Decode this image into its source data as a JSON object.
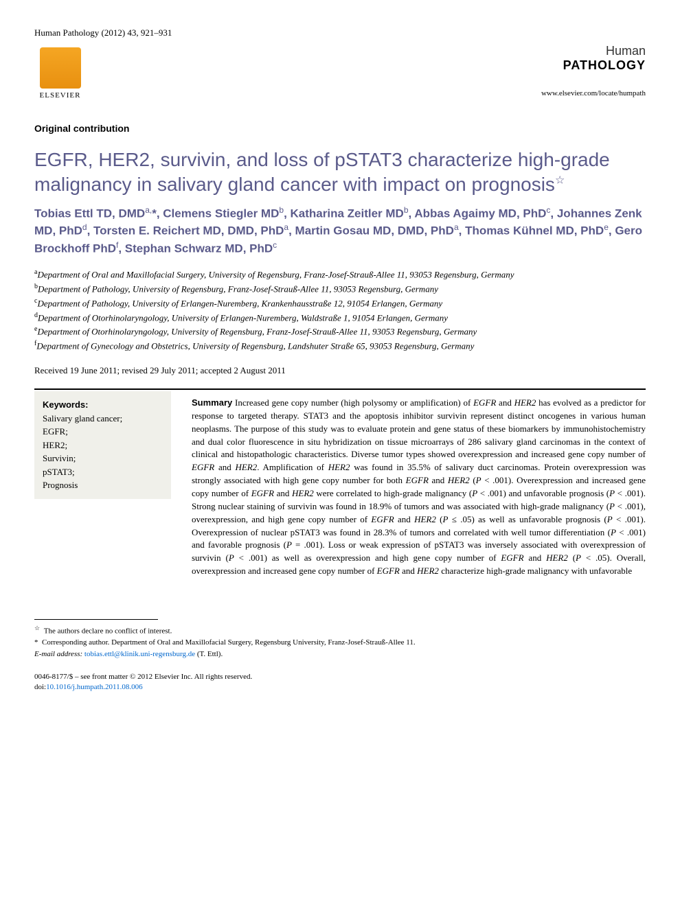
{
  "header": {
    "citation": "Human Pathology (2012) 43, 921–931",
    "publisher": "ELSEVIER",
    "journal_top": "Human",
    "journal_bottom": "PATHOLOGY",
    "url": "www.elsevier.com/locate/humpath"
  },
  "section": "Original contribution",
  "title": "EGFR, HER2, survivin, and loss of pSTAT3 characterize high-grade malignancy in salivary gland cancer with impact on prognosis",
  "title_star": "☆",
  "authors_html": "Tobias Ettl TD, DMD<sup>a,</sup>*, Clemens Stiegler MD<sup>b</sup>, Katharina Zeitler MD<sup>b</sup>, Abbas Agaimy MD, PhD<sup>c</sup>, Johannes Zenk MD, PhD<sup>d</sup>, Torsten E. Reichert MD, DMD, PhD<sup>a</sup>, Martin Gosau MD, DMD, PhD<sup>a</sup>, Thomas Kühnel MD, PhD<sup>e</sup>, Gero Brockhoff PhD<sup>f</sup>, Stephan Schwarz MD, PhD<sup>c</sup>",
  "affiliations": [
    {
      "sup": "a",
      "text": "Department of Oral and Maxillofacial Surgery, University of Regensburg, Franz-Josef-Strauß-Allee 11, 93053 Regensburg, Germany"
    },
    {
      "sup": "b",
      "text": "Department of Pathology, University of Regensburg, Franz-Josef-Strauß-Allee 11, 93053 Regensburg, Germany"
    },
    {
      "sup": "c",
      "text": "Department of Pathology, University of Erlangen-Nuremberg, Krankenhausstraße 12, 91054 Erlangen, Germany"
    },
    {
      "sup": "d",
      "text": "Department of Otorhinolaryngology, University of Erlangen-Nuremberg, Waldstraße 1, 91054 Erlangen, Germany"
    },
    {
      "sup": "e",
      "text": "Department of Otorhinolaryngology, University of Regensburg, Franz-Josef-Strauß-Allee 11, 93053 Regensburg, Germany"
    },
    {
      "sup": "f",
      "text": "Department of Gynecology and Obstetrics, University of Regensburg, Landshuter Straße 65, 93053 Regensburg, Germany"
    }
  ],
  "dates": "Received 19 June 2011; revised 29 July 2011; accepted 2 August 2011",
  "keywords_label": "Keywords:",
  "keywords": "Salivary gland cancer;\nEGFR;\nHER2;\nSurvivin;\npSTAT3;\nPrognosis",
  "summary_label": "Summary",
  "summary": " Increased gene copy number (high polysomy or amplification) of EGFR and HER2 has evolved as a predictor for response to targeted therapy. STAT3 and the apoptosis inhibitor survivin represent distinct oncogenes in various human neoplasms. The purpose of this study was to evaluate protein and gene status of these biomarkers by immunohistochemistry and dual color fluorescence in situ hybridization on tissue microarrays of 286 salivary gland carcinomas in the context of clinical and histopathologic characteristics. Diverse tumor types showed overexpression and increased gene copy number of EGFR and HER2. Amplification of HER2 was found in 35.5% of salivary duct carcinomas. Protein overexpression was strongly associated with high gene copy number for both EGFR and HER2 (P < .001). Overexpression and increased gene copy number of EGFR and HER2 were correlated to high-grade malignancy (P < .001) and unfavorable prognosis (P < .001). Strong nuclear staining of survivin was found in 18.9% of tumors and was associated with high-grade malignancy (P < .001), overexpression, and high gene copy number of EGFR and HER2 (P ≤ .05) as well as unfavorable prognosis (P < .001). Overexpression of nuclear pSTAT3 was found in 28.3% of tumors and correlated with well tumor differentiation (P < .001) and favorable prognosis (P = .001). Loss or weak expression of pSTAT3 was inversely associated with overexpression of survivin (P < .001) as well as overexpression and high gene copy number of EGFR and HER2 (P < .05). Overall, overexpression and increased gene copy number of EGFR and HER2 characterize high-grade malignancy with unfavorable",
  "footnotes": {
    "conflict": "The authors declare no conflict of interest.",
    "corresponding": "Corresponding author. Department of Oral and Maxillofacial Surgery, Regensburg University, Franz-Josef-Strauß-Allee 11.",
    "email_label": "E-mail address:",
    "email": "tobias.ettl@klinik.uni-regensburg.de",
    "email_suffix": " (T. Ettl)."
  },
  "copyright": {
    "line1": "0046-8177/$ – see front matter © 2012 Elsevier Inc. All rights reserved.",
    "doi_label": "doi:",
    "doi": "10.1016/j.humpath.2011.08.006"
  },
  "styling": {
    "title_color": "#5a5a8a",
    "authors_color": "#5a5a8a",
    "link_color": "#0066cc",
    "keywords_bg": "#f0f0ea",
    "body_font": "Times New Roman",
    "heading_font": "Helvetica",
    "title_fontsize": 28,
    "author_fontsize": 17,
    "body_fontsize": 13
  }
}
